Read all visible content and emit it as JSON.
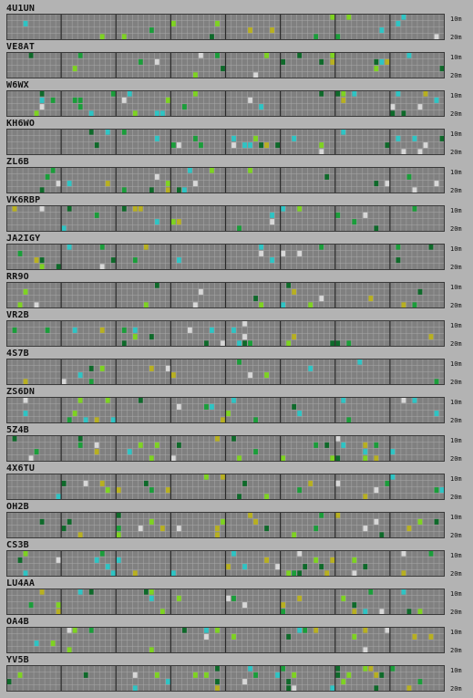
{
  "band_labels": {
    "top": "10m",
    "bottom": "20m"
  },
  "colors": {
    "panel": "#808080",
    "gridline": "#a8a8a8",
    "hour_divider": "#2a2a2a",
    "frame": "#3a3a3a",
    "signal_colors": [
      "#1a9e3a",
      "#7ed321",
      "#b8b020",
      "#2ec4c4",
      "#d8d8d8",
      "#0e6a2a"
    ]
  },
  "stations": [
    {
      "callsign": "4U1UN"
    },
    {
      "callsign": "VE8AT"
    },
    {
      "callsign": "W6WX"
    },
    {
      "callsign": "KH6WO"
    },
    {
      "callsign": "ZL6B"
    },
    {
      "callsign": "VK6RBP"
    },
    {
      "callsign": "JA2IGY"
    },
    {
      "callsign": "RR9O"
    },
    {
      "callsign": "VR2B"
    },
    {
      "callsign": "4S7B"
    },
    {
      "callsign": "ZS6DN"
    },
    {
      "callsign": "5Z4B"
    },
    {
      "callsign": "4X6TU"
    },
    {
      "callsign": "OH2B"
    },
    {
      "callsign": "CS3B"
    },
    {
      "callsign": "LU4AA"
    },
    {
      "callsign": "OA4B"
    },
    {
      "callsign": "YV5B"
    }
  ]
}
